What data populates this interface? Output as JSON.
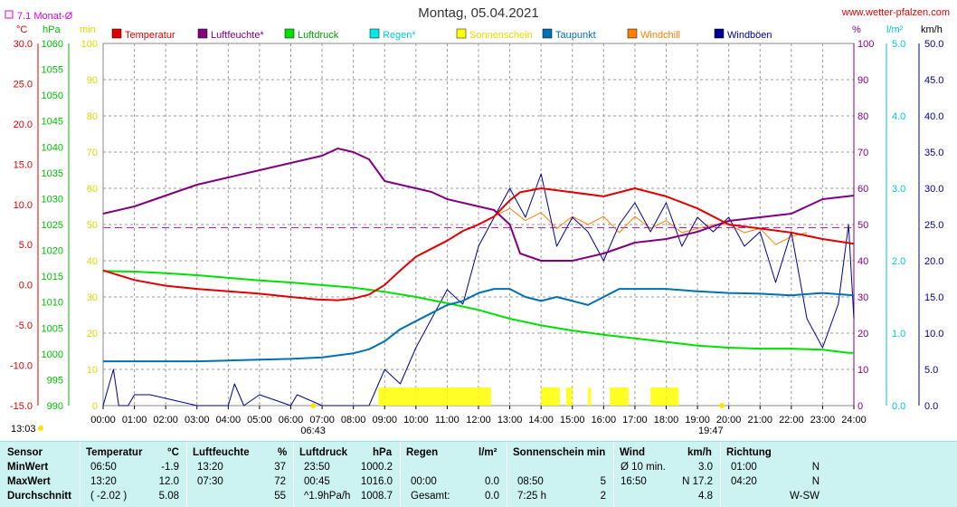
{
  "header": {
    "title": "Montag, 05.04.2021",
    "site": "www.wetter-pfalzen.com",
    "monthly_avg_label": "7.1 Monat-Ø",
    "unit_celsius": "°C",
    "unit_hpa": "hPa",
    "unit_min": "min",
    "unit_percent": "%",
    "unit_lm2": "l/m²",
    "unit_kmh": "km/h",
    "sunrise": "06:43",
    "sunset": "19:47",
    "left_time": "13:03"
  },
  "colors": {
    "temperature": "#e00000",
    "humidity": "#800080",
    "pressure": "#00e000",
    "rain": "#00e8e8",
    "sunshine": "#ffff00",
    "dewpoint": "#0070b0",
    "windchill": "#ff8000",
    "gust": "#000090",
    "monthly_avg": "#e000e0"
  },
  "chart_data": {
    "type": "line",
    "title": "Montag, 05.04.2021",
    "legend": [
      "Temperatur",
      "Luftfeuchte*",
      "Luftdruck",
      "Regen*",
      "Sonnenschein",
      "Taupunkt",
      "Windchill",
      "Windböen"
    ],
    "x_ticks": [
      "00:00",
      "01:00",
      "02:00",
      "03:00",
      "04:00",
      "05:00",
      "06:00",
      "07:00",
      "08:00",
      "09:00",
      "10:00",
      "11:00",
      "12:00",
      "13:00",
      "14:00",
      "15:00",
      "16:00",
      "17:00",
      "18:00",
      "19:00",
      "20:00",
      "21:00",
      "22:00",
      "23:00",
      "24:00"
    ],
    "axes": {
      "temperature": {
        "label": "°C",
        "range": [
          -15,
          30
        ],
        "ticks": [
          "30.0",
          "25.0",
          "20.0",
          "15.0",
          "10.0",
          "5.0",
          "0.0",
          "-5.0",
          "-10.0",
          "-15.0"
        ]
      },
      "pressure": {
        "label": "hPa",
        "range": [
          990,
          1060
        ],
        "ticks": [
          "1060",
          "1055",
          "1050",
          "1045",
          "1040",
          "1035",
          "1030",
          "1025",
          "1020",
          "1015",
          "1010",
          "1005",
          "1000",
          "995",
          "990"
        ]
      },
      "sunshine": {
        "label": "min",
        "range": [
          0,
          100
        ],
        "ticks": [
          "100",
          "90",
          "80",
          "70",
          "60",
          "50",
          "40",
          "30",
          "20",
          "10",
          "0"
        ]
      },
      "humidity": {
        "label": "%",
        "range": [
          0,
          100
        ],
        "ticks": [
          "100",
          "90",
          "80",
          "70",
          "60",
          "50",
          "40",
          "30",
          "20",
          "10",
          "0"
        ]
      },
      "rain": {
        "label": "l/m²",
        "range": [
          0,
          5
        ],
        "ticks": [
          "5.0",
          "4.0",
          "3.0",
          "2.0",
          "1.0",
          "0.0"
        ]
      },
      "wind": {
        "label": "km/h",
        "range": [
          0,
          50
        ],
        "ticks": [
          "50.0",
          "45.0",
          "40.0",
          "35.0",
          "30.0",
          "25.0",
          "20.0",
          "15.0",
          "10.0",
          "5.0",
          "0.0"
        ]
      }
    },
    "monthly_avg_temp": 7.1,
    "series": [
      {
        "name": "Temperatur",
        "axis": "temperature",
        "x": [
          0,
          1,
          2,
          3,
          4,
          5,
          6,
          6.83,
          7.5,
          8,
          8.5,
          9,
          9.5,
          10,
          10.5,
          11,
          11.5,
          12,
          12.5,
          13,
          13.33,
          14,
          15,
          16,
          17,
          18,
          19,
          20,
          21,
          22,
          23,
          24
        ],
        "values": [
          1.8,
          0.6,
          -0.1,
          -0.5,
          -0.8,
          -1.1,
          -1.5,
          -1.8,
          -1.9,
          -1.7,
          -1.2,
          0.0,
          1.8,
          3.5,
          4.5,
          5.5,
          6.7,
          7.5,
          8.5,
          10.5,
          11.5,
          12.0,
          11.5,
          11.0,
          12.0,
          11.0,
          9.5,
          7.5,
          7.0,
          6.5,
          5.7,
          5.1
        ]
      },
      {
        "name": "Luftfeuchte*",
        "axis": "humidity",
        "x": [
          0,
          1,
          2,
          3,
          4,
          5,
          6,
          7,
          7.5,
          8,
          8.5,
          9,
          9.5,
          10,
          10.5,
          11,
          11.5,
          12,
          12.5,
          13,
          13.33,
          14,
          15,
          16,
          17,
          18,
          19,
          20,
          21,
          22,
          23,
          24
        ],
        "values": [
          53,
          55,
          58,
          61,
          63,
          65,
          67,
          69,
          71,
          70,
          68,
          62,
          61,
          60,
          59,
          57,
          56,
          55,
          54,
          50,
          42,
          40,
          40,
          42,
          45,
          46,
          48,
          51,
          52,
          53,
          57,
          58
        ]
      },
      {
        "name": "Luftdruck",
        "axis": "pressure",
        "x": [
          0,
          1,
          2,
          3,
          4,
          5,
          6,
          7,
          8,
          9,
          10,
          11,
          12,
          13,
          14,
          15,
          16,
          17,
          18,
          19,
          20,
          21,
          22,
          23,
          23.83,
          24
        ],
        "values": [
          1016.0,
          1015.9,
          1015.6,
          1015.2,
          1014.7,
          1014.2,
          1013.8,
          1013.3,
          1012.8,
          1012.0,
          1011.0,
          1009.8,
          1008.5,
          1006.8,
          1005.5,
          1004.5,
          1003.7,
          1003.0,
          1002.3,
          1001.6,
          1001.2,
          1001.0,
          1001.0,
          1000.8,
          1000.2,
          1000.2
        ]
      },
      {
        "name": "Taupunkt",
        "axis": "temperature",
        "x": [
          0,
          1,
          2,
          3,
          4,
          5,
          6,
          7,
          8,
          8.5,
          9,
          9.5,
          10,
          10.5,
          11,
          11.5,
          12,
          12.5,
          13,
          13.5,
          14,
          14.5,
          15,
          15.5,
          16,
          16.5,
          17,
          18,
          19,
          20,
          21,
          22,
          23,
          24
        ],
        "values": [
          -9.5,
          -9.5,
          -9.5,
          -9.5,
          -9.4,
          -9.3,
          -9.2,
          -9.0,
          -8.5,
          -8.0,
          -7.0,
          -5.5,
          -4.5,
          -3.5,
          -2.5,
          -2.0,
          -1.0,
          -0.5,
          -0.5,
          -1.5,
          -2.0,
          -1.5,
          -2.0,
          -2.5,
          -1.5,
          -0.5,
          -0.5,
          -0.5,
          -0.8,
          -1.0,
          -1.1,
          -1.3,
          -1.0,
          -1.3
        ]
      },
      {
        "name": "Windchill",
        "axis": "temperature",
        "x": [
          12.5,
          13,
          13.5,
          14,
          14.5,
          15,
          15.5,
          16,
          16.5,
          17,
          17.5,
          18,
          18.5,
          19,
          19.5,
          20,
          20.5,
          21,
          21.5,
          22,
          22.5
        ],
        "values": [
          8.5,
          9.5,
          8.0,
          9.0,
          7.0,
          8.5,
          7.5,
          8.5,
          6.5,
          8.5,
          7.0,
          8.0,
          6.5,
          7.0,
          7.5,
          7.5,
          6.5,
          7.0,
          5.0,
          6.0,
          6.5
        ]
      },
      {
        "name": "Windböen",
        "axis": "wind",
        "x": [
          0,
          0.33,
          0.5,
          0.8,
          1,
          1.5,
          2,
          3,
          4,
          4.2,
          4.5,
          5,
          6,
          6.2,
          7,
          8,
          8.5,
          9,
          9.5,
          10,
          10.5,
          11,
          11.5,
          12,
          12.5,
          13,
          13.5,
          14,
          14.5,
          15,
          15.5,
          16,
          16.5,
          17,
          17.5,
          18,
          18.5,
          19,
          19.5,
          20,
          20.5,
          21,
          21.5,
          22,
          22.5,
          23,
          23.5,
          23.83,
          24
        ],
        "values": [
          0,
          5,
          0,
          0,
          1.5,
          1.5,
          1,
          0,
          0,
          3,
          0,
          1.5,
          0,
          1.5,
          0,
          0,
          0,
          5,
          3,
          8,
          12,
          16,
          14,
          22,
          26,
          30,
          26,
          32,
          22,
          26,
          24,
          20,
          25,
          28,
          24,
          28,
          22,
          26,
          24,
          26,
          22,
          24,
          17,
          24,
          12,
          8,
          14,
          25,
          12
        ]
      }
    ],
    "sunshine_blocks": [
      [
        8.8,
        12.4
      ],
      [
        14.0,
        14.6
      ],
      [
        14.8,
        15.0
      ],
      [
        15.5,
        15.6
      ],
      [
        16.2,
        16.8
      ],
      [
        17.5,
        18.4
      ]
    ]
  },
  "stats": {
    "headers": {
      "sensor": "Sensor",
      "temperature": "Temperatur",
      "temperature_unit": "°C",
      "humidity": "Luftfeuchte",
      "humidity_unit": "%",
      "pressure": "Luftdruck",
      "pressure_unit": "hPa",
      "rain": "Regen",
      "rain_unit": "l/m²",
      "sunshine": "Sonnenschein min",
      "wind": "Wind",
      "wind_unit": "km/h",
      "direction": "Richtung"
    },
    "rows": [
      {
        "label": "MinWert",
        "t_time": "06:50",
        "t_val": "-1.9",
        "h_time": "13:20",
        "h_val": "37",
        "p_time": "23:50",
        "p_val": "1000.2",
        "r_time": "",
        "r_val": "",
        "s_time": "",
        "s_val": "",
        "w_time": "Ø 10 min.",
        "w_val": "3.0",
        "d_time": "01:00",
        "d_val": "N"
      },
      {
        "label": "MaxWert",
        "t_time": "13:20",
        "t_val": "12.0",
        "h_time": "07:30",
        "h_val": "72",
        "p_time": "00:45",
        "p_val": "1016.0",
        "r_time": "00:00",
        "r_val": "0.0",
        "s_time": "08:50",
        "s_val": "5",
        "w_time": "16:50",
        "w_val": "N 17.2",
        "d_time": "04:20",
        "d_val": "N"
      },
      {
        "label": "Durchschnitt",
        "t_time": "( -2.02 )",
        "t_val": "5.08",
        "h_time": "",
        "h_val": "55",
        "p_time": "^1.9hPa/h",
        "p_val": "1008.7",
        "r_time": "Gesamt:",
        "r_val": "0.0",
        "s_time": "7:25 h",
        "s_val": "2",
        "w_time": "",
        "w_val": "4.8",
        "d_time": "",
        "d_val": "W-SW"
      }
    ]
  }
}
